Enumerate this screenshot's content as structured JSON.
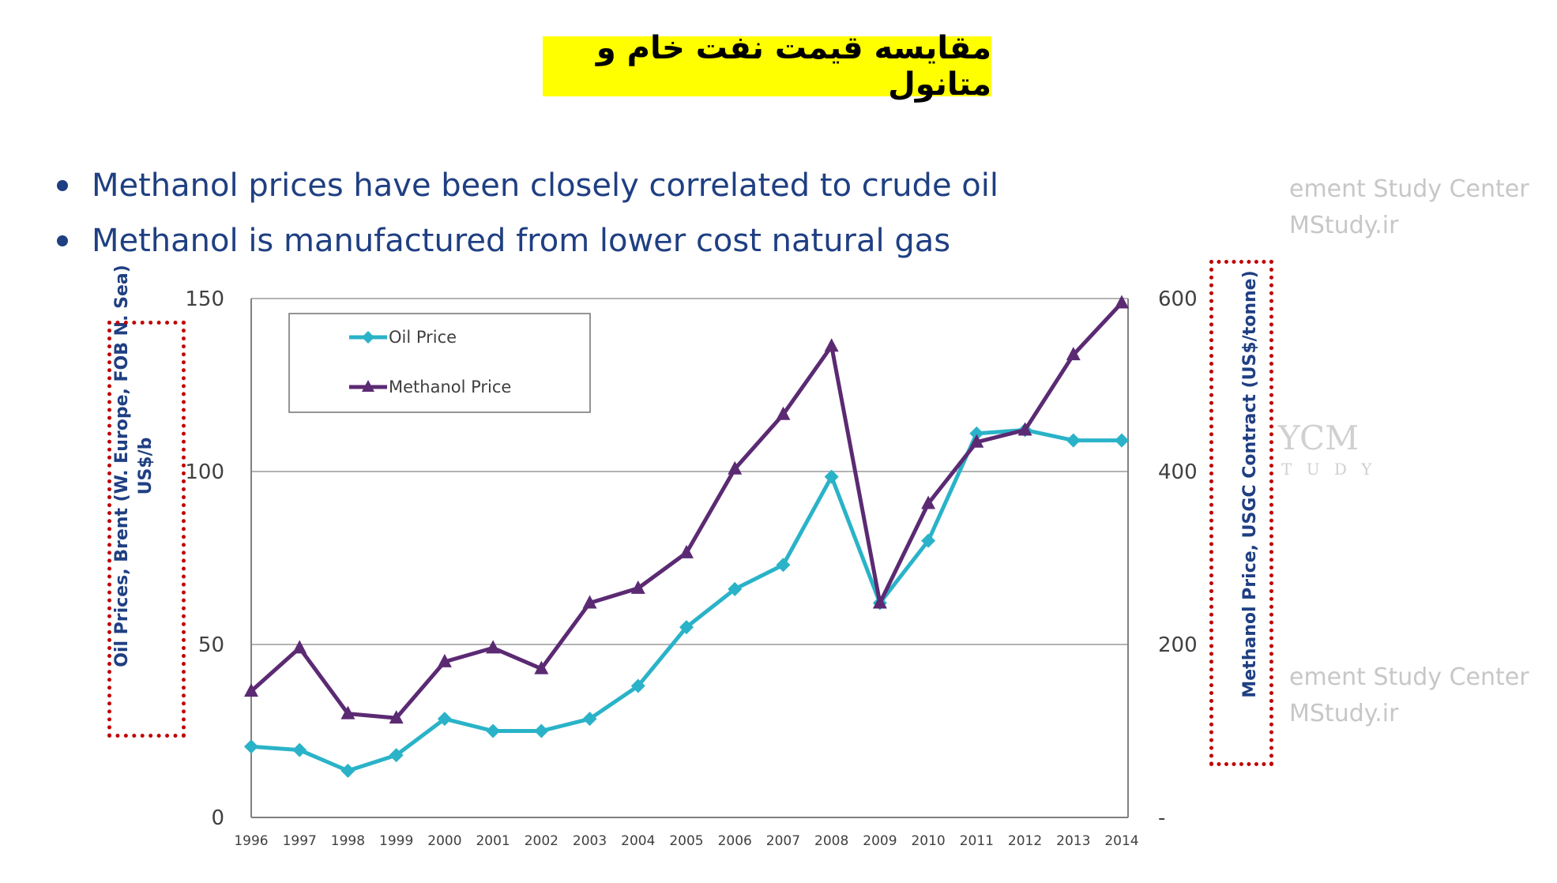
{
  "slide": {
    "title": "مقایسه قیمت نفت خام و متانول",
    "bullets": [
      "Methanol prices have been closely correlated to crude oil",
      "Methanol is manufactured from lower cost natural gas"
    ],
    "watermarks": [
      "ement Study Center",
      "MStudy.ir",
      "ement Study Center",
      "MStudy.ir"
    ],
    "watermark_logo": "YCM",
    "watermark_logo_sub": "T U D Y"
  },
  "chart_data": {
    "type": "line",
    "categories": [
      "1996",
      "1997",
      "1998",
      "1999",
      "2000",
      "2001",
      "2002",
      "2003",
      "2004",
      "2005",
      "2006",
      "2007",
      "2008",
      "2009",
      "2010",
      "2011",
      "2012",
      "2013",
      "2014"
    ],
    "series": [
      {
        "name": "Oil Price",
        "axis": "left",
        "color": "#2ab3c8",
        "marker": "diamond",
        "values": [
          20.5,
          19.5,
          13.5,
          18,
          28.5,
          25,
          25,
          28.5,
          38,
          55,
          66,
          73,
          98.5,
          62,
          80,
          111,
          112,
          109,
          109
        ]
      },
      {
        "name": "Methanol Price",
        "axis": "right",
        "color": "#5b2a73",
        "marker": "triangle",
        "values": [
          146,
          196,
          120,
          115,
          180,
          196,
          172,
          248,
          265,
          306,
          403,
          466,
          545,
          248,
          363,
          434,
          448,
          535,
          595
        ]
      }
    ],
    "ylabel_left": "Oil Prices, Brent (W. Europe, FOB N. Sea)\nUS$/b",
    "ylabel_left_lines": [
      "Oil Prices, Brent (W. Europe, FOB N. Sea)",
      "US$/b"
    ],
    "ylabel_right": "Methanol Price, USGC Contract (US$/tonne)",
    "ylim_left": [
      0,
      150
    ],
    "ylim_right": [
      0,
      600
    ],
    "yticks_left": [
      "0",
      "50",
      "100",
      "150"
    ],
    "yticks_right": [
      "-",
      "200",
      "400",
      "600"
    ],
    "grid": true,
    "legend_position": "top-left"
  }
}
